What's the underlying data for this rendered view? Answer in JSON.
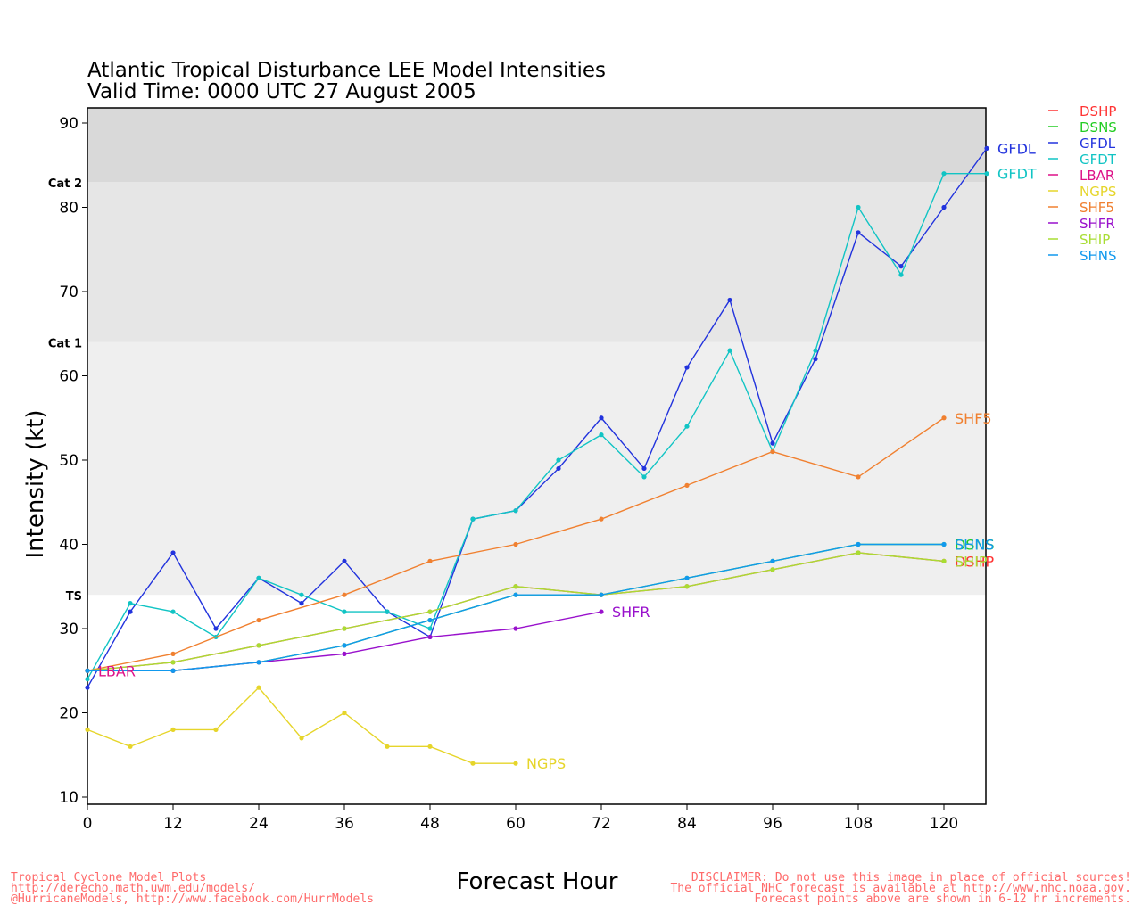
{
  "chart_data": {
    "type": "line",
    "title": "Atlantic Tropical Disturbance LEE Model Intensities",
    "subtitle": "Valid Time: 0000 UTC 27 August 2005",
    "xlabel": "Forecast Hour",
    "ylabel": "Intensity (kt)",
    "xlim": [
      0,
      126
    ],
    "ylim": [
      9,
      92
    ],
    "xticks": [
      0,
      12,
      24,
      36,
      48,
      60,
      72,
      84,
      96,
      108,
      120
    ],
    "yticks": [
      10,
      20,
      30,
      40,
      50,
      60,
      70,
      80,
      90
    ],
    "bands": [
      {
        "label": "TS",
        "from": 34,
        "to": 64,
        "color": "#efefef"
      },
      {
        "label": "Cat 1",
        "from": 64,
        "to": 83,
        "color": "#e6e6e6"
      },
      {
        "label": "Cat 2",
        "from": 83,
        "to": 96,
        "color": "#d9d9d9"
      }
    ],
    "legend_position": "top-right",
    "series": [
      {
        "name": "DSHP",
        "color": "#ff3333",
        "end_label": "DSHP",
        "x": [
          0,
          12,
          24,
          36,
          48,
          60,
          72,
          84,
          96,
          108,
          120
        ],
        "y": [
          25,
          26,
          28,
          30,
          32,
          35,
          34,
          35,
          37,
          39,
          38
        ]
      },
      {
        "name": "DSNS",
        "color": "#22cc22",
        "end_label": "DSNS",
        "x": [
          0,
          12,
          24,
          36,
          48,
          60,
          72,
          84,
          96,
          108,
          120
        ],
        "y": [
          25,
          25,
          26,
          28,
          31,
          34,
          34,
          36,
          38,
          40,
          40
        ]
      },
      {
        "name": "GFDL",
        "color": "#2233dd",
        "end_label": "GFDL",
        "x": [
          0,
          6,
          12,
          18,
          24,
          30,
          36,
          42,
          48,
          54,
          60,
          66,
          72,
          78,
          84,
          90,
          96,
          102,
          108,
          114,
          120,
          126
        ],
        "y": [
          23,
          32,
          39,
          30,
          36,
          33,
          38,
          32,
          29,
          43,
          44,
          49,
          55,
          49,
          61,
          69,
          52,
          62,
          77,
          73,
          80,
          87
        ]
      },
      {
        "name": "GFDT",
        "color": "#11c4c4",
        "end_label": "GFDT",
        "x": [
          0,
          6,
          12,
          18,
          24,
          30,
          36,
          42,
          48,
          54,
          60,
          66,
          72,
          78,
          84,
          90,
          96,
          102,
          108,
          114,
          120,
          126
        ],
        "y": [
          24,
          33,
          32,
          29,
          36,
          34,
          32,
          32,
          30,
          43,
          44,
          50,
          53,
          48,
          54,
          63,
          51,
          63,
          80,
          72,
          84,
          84
        ]
      },
      {
        "name": "LBAR",
        "color": "#dd1188",
        "end_label": "LBAR",
        "x": [
          0
        ],
        "y": [
          25
        ]
      },
      {
        "name": "NGPS",
        "color": "#e6d52a",
        "end_label": "NGPS",
        "x": [
          0,
          6,
          12,
          18,
          24,
          30,
          36,
          42,
          48,
          54,
          60
        ],
        "y": [
          18,
          16,
          18,
          18,
          23,
          17,
          20,
          16,
          16,
          14,
          14
        ]
      },
      {
        "name": "SHF5",
        "color": "#f08030",
        "end_label": "SHF5",
        "x": [
          0,
          12,
          24,
          36,
          48,
          60,
          72,
          84,
          96,
          108,
          120
        ],
        "y": [
          25,
          27,
          31,
          34,
          38,
          40,
          43,
          47,
          51,
          48,
          55
        ]
      },
      {
        "name": "SHFR",
        "color": "#9911cc",
        "end_label": "SHFR",
        "x": [
          0,
          12,
          24,
          36,
          48,
          60,
          72
        ],
        "y": [
          25,
          25,
          26,
          27,
          29,
          30,
          32
        ]
      },
      {
        "name": "SHIP",
        "color": "#a8dd33",
        "end_label": "SHIP",
        "x": [
          0,
          12,
          24,
          36,
          48,
          60,
          72,
          84,
          96,
          108,
          120
        ],
        "y": [
          25,
          26,
          28,
          30,
          32,
          35,
          34,
          35,
          37,
          39,
          38
        ]
      },
      {
        "name": "SHNS",
        "color": "#1199ee",
        "end_label": "SHNS",
        "x": [
          0,
          12,
          24,
          36,
          48,
          60,
          72,
          84,
          96,
          108,
          120
        ],
        "y": [
          25,
          25,
          26,
          28,
          31,
          34,
          34,
          36,
          38,
          40,
          40
        ]
      }
    ]
  },
  "footer": {
    "left_line1": "Tropical Cyclone Model Plots",
    "left_line2": "http://derecho.math.uwm.edu/models/",
    "left_line3": "@HurricaneModels, http://www.facebook.com/HurrModels",
    "right_line1": "DISCLAIMER: Do not use this image in place of official sources!",
    "right_line2": "The official NHC forecast is available at http://www.nhc.noaa.gov.",
    "right_line3": "Forecast points above are shown in 6-12 hr increments."
  }
}
